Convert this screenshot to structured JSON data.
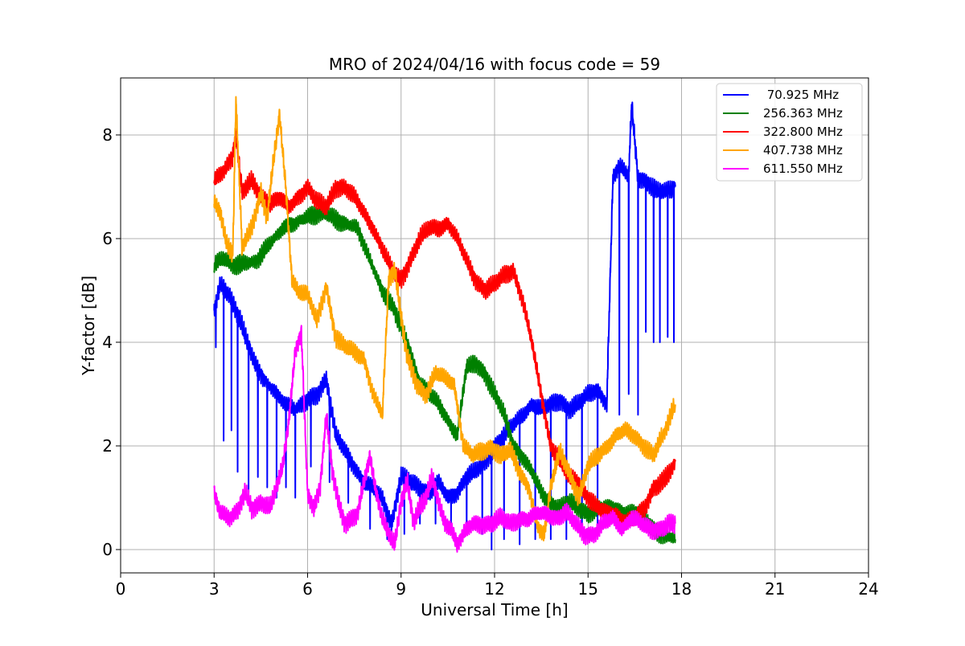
{
  "chart_data": {
    "type": "line",
    "title": "MRO of 2024/04/16 with focus code = 59",
    "xlabel": "Universal Time [h]",
    "ylabel": "Y-factor [dB]",
    "xlim": [
      0,
      24
    ],
    "ylim": [
      -0.45,
      9.1
    ],
    "xticks": [
      0,
      3,
      6,
      9,
      12,
      15,
      18,
      21,
      24
    ],
    "yticks": [
      0,
      2,
      4,
      6,
      8
    ],
    "grid": true,
    "legend_position": "top-right",
    "series": [
      {
        "name": " 70.925 MHz",
        "color": "#0000ff",
        "x": [
          3.0,
          3.2,
          3.5,
          3.8,
          4.0,
          4.3,
          4.6,
          5.0,
          5.3,
          5.6,
          6.0,
          6.3,
          6.6,
          6.9,
          7.2,
          7.5,
          7.8,
          8.1,
          8.4,
          8.7,
          9.0,
          9.3,
          9.6,
          9.9,
          10.2,
          10.5,
          10.8,
          11.1,
          11.4,
          11.7,
          12.0,
          12.3,
          12.6,
          12.9,
          13.2,
          13.5,
          13.8,
          14.1,
          14.4,
          14.7,
          15.0,
          15.3,
          15.6,
          15.7,
          15.8,
          16.0,
          16.3,
          16.4,
          16.6,
          16.9,
          17.2,
          17.5,
          17.8
        ],
        "y": [
          4.6,
          5.1,
          4.9,
          4.5,
          4.1,
          3.6,
          3.3,
          3.0,
          2.8,
          2.7,
          2.9,
          3.0,
          3.3,
          2.2,
          1.9,
          1.6,
          1.3,
          1.2,
          1.0,
          0.5,
          1.4,
          1.3,
          1.2,
          1.1,
          1.3,
          1.0,
          1.1,
          1.4,
          1.5,
          1.7,
          2.0,
          2.2,
          2.4,
          2.6,
          2.8,
          2.7,
          2.8,
          2.9,
          2.7,
          2.8,
          3.0,
          3.1,
          2.8,
          5.0,
          7.2,
          7.4,
          7.2,
          8.6,
          7.2,
          7.1,
          6.9,
          6.9,
          7.0
        ],
        "dips": [
          [
            3.05,
            3.9
          ],
          [
            3.3,
            2.1
          ],
          [
            3.55,
            2.3
          ],
          [
            3.75,
            1.5
          ],
          [
            4.1,
            1.1
          ],
          [
            4.4,
            1.4
          ],
          [
            4.7,
            1.2
          ],
          [
            5.0,
            1.0
          ],
          [
            5.3,
            1.2
          ],
          [
            5.6,
            1.0
          ],
          [
            6.1,
            1.6
          ],
          [
            6.7,
            1.3
          ],
          [
            7.3,
            0.9
          ],
          [
            8.0,
            0.4
          ],
          [
            8.55,
            0.2
          ],
          [
            9.1,
            0.3
          ],
          [
            9.6,
            0.5
          ],
          [
            10.1,
            0.5
          ],
          [
            10.6,
            0.5
          ],
          [
            11.1,
            0.4
          ],
          [
            11.6,
            0.3
          ],
          [
            11.9,
            0.0
          ],
          [
            12.3,
            0.2
          ],
          [
            12.8,
            0.1
          ],
          [
            13.3,
            0.2
          ],
          [
            13.8,
            0.2
          ],
          [
            14.3,
            0.2
          ],
          [
            14.8,
            0.3
          ],
          [
            15.3,
            0.3
          ],
          [
            16.0,
            2.6
          ],
          [
            16.3,
            3.0
          ],
          [
            16.6,
            2.6
          ],
          [
            16.85,
            4.2
          ],
          [
            17.1,
            4.0
          ],
          [
            17.3,
            4.0
          ],
          [
            17.55,
            4.1
          ],
          [
            17.75,
            4.0
          ]
        ]
      },
      {
        "name": "256.363 MHz",
        "color": "#008000",
        "x": [
          3.0,
          3.3,
          3.6,
          4.0,
          4.4,
          4.8,
          5.2,
          5.6,
          6.0,
          6.4,
          6.8,
          7.2,
          7.6,
          8.0,
          8.4,
          8.8,
          9.0,
          9.3,
          9.6,
          9.9,
          10.2,
          10.5,
          10.8,
          11.1,
          11.4,
          11.7,
          12.0,
          12.3,
          12.6,
          12.9,
          13.2,
          13.5,
          13.8,
          14.1,
          14.4,
          14.7,
          15.0,
          15.3,
          15.6,
          15.9,
          16.2,
          16.5,
          16.8,
          17.1,
          17.4,
          17.8
        ],
        "y": [
          5.5,
          5.6,
          5.5,
          5.5,
          5.6,
          5.9,
          6.2,
          6.3,
          6.4,
          6.5,
          6.4,
          6.3,
          6.2,
          5.6,
          5.0,
          4.6,
          4.3,
          3.8,
          3.2,
          3.0,
          2.8,
          2.5,
          2.2,
          3.5,
          3.6,
          3.4,
          3.0,
          2.6,
          2.0,
          1.8,
          1.5,
          1.1,
          0.9,
          0.8,
          0.9,
          0.8,
          0.7,
          0.8,
          0.8,
          0.8,
          0.7,
          0.7,
          0.6,
          0.4,
          0.3,
          0.2
        ]
      },
      {
        "name": "322.800 MHz",
        "color": "#ff0000",
        "x": [
          3.0,
          3.3,
          3.6,
          3.7,
          3.9,
          4.2,
          4.5,
          4.8,
          5.1,
          5.4,
          5.7,
          6.0,
          6.3,
          6.6,
          6.9,
          7.2,
          7.5,
          7.8,
          8.1,
          8.4,
          8.7,
          9.0,
          9.3,
          9.6,
          9.9,
          10.2,
          10.5,
          10.8,
          11.1,
          11.4,
          11.7,
          12.0,
          12.3,
          12.6,
          12.9,
          13.2,
          13.5,
          13.8,
          14.1,
          14.4,
          14.7,
          15.0,
          15.3,
          15.6,
          15.9,
          16.2,
          16.5,
          16.8,
          17.1,
          17.4,
          17.8
        ],
        "y": [
          7.1,
          7.3,
          7.6,
          8.0,
          6.9,
          7.1,
          6.8,
          6.7,
          6.8,
          6.6,
          6.8,
          7.0,
          6.7,
          6.6,
          7.0,
          7.0,
          6.8,
          6.5,
          6.2,
          5.8,
          5.4,
          5.2,
          5.6,
          6.0,
          6.2,
          6.2,
          6.3,
          6.0,
          5.6,
          5.2,
          5.0,
          5.1,
          5.3,
          5.4,
          4.8,
          4.0,
          3.0,
          2.0,
          1.7,
          1.4,
          1.3,
          1.0,
          0.8,
          0.7,
          0.7,
          0.5,
          0.6,
          0.8,
          1.2,
          1.3,
          1.7
        ]
      },
      {
        "name": "407.738 MHz",
        "color": "#ffa500",
        "x": [
          3.0,
          3.2,
          3.4,
          3.6,
          3.7,
          3.9,
          4.2,
          4.5,
          4.7,
          4.9,
          5.1,
          5.3,
          5.5,
          5.7,
          6.0,
          6.3,
          6.6,
          6.9,
          7.2,
          7.5,
          7.8,
          8.1,
          8.4,
          8.6,
          8.8,
          9.0,
          9.2,
          9.5,
          9.8,
          10.1,
          10.4,
          10.7,
          11.0,
          11.3,
          11.6,
          11.9,
          12.2,
          12.5,
          12.8,
          13.1,
          13.4,
          13.6,
          13.8,
          14.1,
          14.4,
          14.7,
          15.0,
          15.3,
          15.6,
          15.9,
          16.2,
          16.5,
          16.8,
          17.1,
          17.4,
          17.8
        ],
        "y": [
          6.7,
          6.5,
          5.9,
          5.7,
          8.7,
          5.8,
          6.2,
          6.9,
          6.4,
          7.5,
          8.4,
          7.0,
          5.2,
          5.0,
          4.9,
          4.4,
          5.1,
          4.1,
          3.9,
          3.8,
          3.7,
          3.0,
          2.6,
          5.2,
          5.4,
          4.5,
          3.7,
          3.2,
          3.0,
          3.4,
          3.3,
          3.2,
          2.0,
          1.8,
          1.9,
          2.0,
          1.8,
          1.9,
          1.5,
          1.2,
          0.4,
          0.3,
          1.2,
          1.9,
          1.5,
          1.0,
          1.6,
          1.8,
          2.0,
          2.2,
          2.3,
          2.2,
          2.0,
          1.8,
          2.2,
          2.8
        ]
      },
      {
        "name": "611.550 MHz",
        "color": "#ff00ff",
        "x": [
          3.0,
          3.2,
          3.5,
          3.8,
          4.0,
          4.2,
          4.5,
          4.8,
          5.0,
          5.2,
          5.4,
          5.6,
          5.8,
          6.0,
          6.2,
          6.4,
          6.6,
          6.8,
          7.0,
          7.2,
          7.4,
          7.6,
          7.8,
          8.0,
          8.2,
          8.4,
          8.6,
          8.8,
          9.0,
          9.2,
          9.4,
          9.6,
          9.8,
          10.0,
          10.2,
          10.4,
          10.6,
          10.8,
          11.0,
          11.3,
          11.6,
          11.9,
          12.2,
          12.5,
          12.8,
          13.1,
          13.4,
          13.7,
          14.0,
          14.3,
          14.6,
          14.9,
          15.2,
          15.5,
          15.8,
          16.1,
          16.4,
          16.7,
          17.0,
          17.3,
          17.6,
          17.8
        ],
        "y": [
          1.1,
          0.7,
          0.6,
          0.8,
          1.1,
          0.8,
          0.9,
          0.8,
          1.2,
          1.6,
          2.5,
          3.8,
          4.2,
          1.1,
          0.8,
          1.2,
          2.6,
          1.5,
          0.9,
          0.5,
          0.6,
          0.7,
          1.3,
          1.8,
          1.1,
          0.6,
          0.3,
          0.1,
          0.9,
          1.3,
          0.5,
          0.8,
          1.0,
          1.4,
          0.9,
          0.5,
          0.4,
          0.1,
          0.3,
          0.5,
          0.5,
          0.5,
          0.6,
          0.5,
          0.6,
          0.6,
          0.7,
          0.7,
          0.6,
          0.7,
          0.5,
          0.3,
          0.3,
          0.5,
          0.6,
          0.4,
          0.6,
          0.5,
          0.4,
          0.4,
          0.5,
          0.5
        ]
      }
    ]
  }
}
